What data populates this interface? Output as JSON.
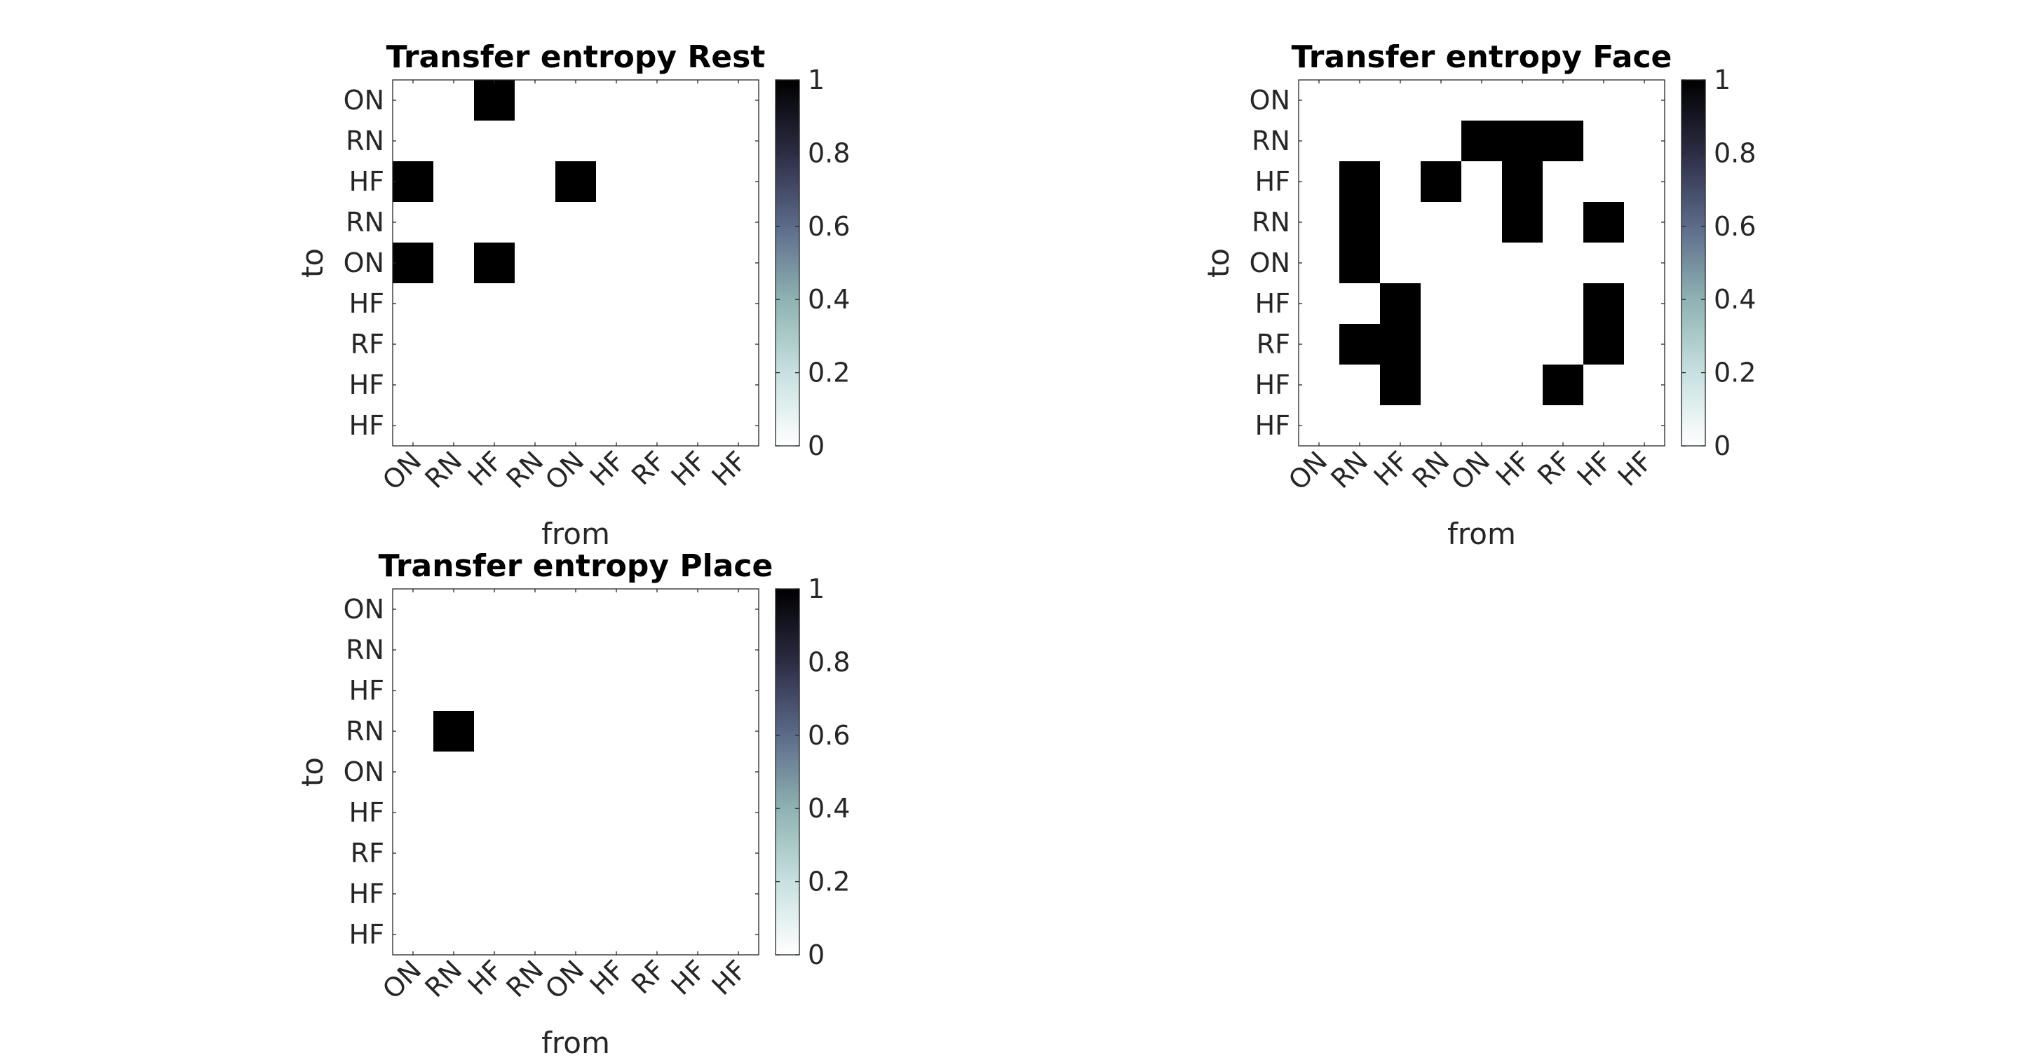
{
  "figure": {
    "background": "#ffffff",
    "colormap": "bone (reversed)",
    "colormap_stops": [
      "#ffffff",
      "#c7e0e0",
      "#8fb2b2",
      "#5c6b8a",
      "#2c2c44",
      "#000000"
    ],
    "grid": false
  },
  "chart_data": [
    {
      "type": "heatmap",
      "title": "Transfer entropy Rest",
      "xlabel": "from",
      "ylabel": "to",
      "x_labels": [
        "ON",
        "RN",
        "HF",
        "RN",
        "ON",
        "HF",
        "RF",
        "HF",
        "HF"
      ],
      "y_labels": [
        "ON",
        "RN",
        "HF",
        "RN",
        "ON",
        "HF",
        "RF",
        "HF",
        "HF"
      ],
      "value_range": [
        0,
        1
      ],
      "matrix": [
        [
          0,
          0,
          1,
          0,
          0,
          0,
          0,
          0,
          0
        ],
        [
          0,
          0,
          0,
          0,
          0,
          0,
          0,
          0,
          0
        ],
        [
          1,
          0,
          0,
          0,
          1,
          0,
          0,
          0,
          0
        ],
        [
          0,
          0,
          0,
          0,
          0,
          0,
          0,
          0,
          0
        ],
        [
          1,
          0,
          1,
          0,
          0,
          0,
          0,
          0,
          0
        ],
        [
          0,
          0,
          0,
          0,
          0,
          0,
          0,
          0,
          0
        ],
        [
          0,
          0,
          0,
          0,
          0,
          0,
          0,
          0,
          0
        ],
        [
          0,
          0,
          0,
          0,
          0,
          0,
          0,
          0,
          0
        ],
        [
          0,
          0,
          0,
          0,
          0,
          0,
          0,
          0,
          0
        ]
      ],
      "colorbar": {
        "ticks": [
          "0",
          "0.2",
          "0.4",
          "0.6",
          "0.8",
          "1"
        ]
      }
    },
    {
      "type": "heatmap",
      "title": "Transfer entropy Face",
      "xlabel": "from",
      "ylabel": "to",
      "x_labels": [
        "ON",
        "RN",
        "HF",
        "RN",
        "ON",
        "HF",
        "RF",
        "HF",
        "HF"
      ],
      "y_labels": [
        "ON",
        "RN",
        "HF",
        "RN",
        "ON",
        "HF",
        "RF",
        "HF",
        "HF"
      ],
      "value_range": [
        0,
        1
      ],
      "matrix": [
        [
          0,
          0,
          0,
          0,
          0,
          0,
          0,
          0,
          0
        ],
        [
          0,
          0,
          0,
          0,
          1,
          1,
          1,
          0,
          0
        ],
        [
          0,
          1,
          0,
          1,
          0,
          1,
          0,
          0,
          0
        ],
        [
          0,
          1,
          0,
          0,
          0,
          1,
          0,
          1,
          0
        ],
        [
          0,
          1,
          0,
          0,
          0,
          0,
          0,
          0,
          0
        ],
        [
          0,
          0,
          1,
          0,
          0,
          0,
          0,
          1,
          0
        ],
        [
          0,
          1,
          1,
          0,
          0,
          0,
          0,
          1,
          0
        ],
        [
          0,
          0,
          1,
          0,
          0,
          0,
          1,
          0,
          0
        ],
        [
          0,
          0,
          0,
          0,
          0,
          0,
          0,
          0,
          0
        ]
      ],
      "colorbar": {
        "ticks": [
          "0",
          "0.2",
          "0.4",
          "0.6",
          "0.8",
          "1"
        ]
      }
    },
    {
      "type": "heatmap",
      "title": "Transfer entropy Place",
      "xlabel": "from",
      "ylabel": "to",
      "x_labels": [
        "ON",
        "RN",
        "HF",
        "RN",
        "ON",
        "HF",
        "RF",
        "HF",
        "HF"
      ],
      "y_labels": [
        "ON",
        "RN",
        "HF",
        "RN",
        "ON",
        "HF",
        "RF",
        "HF",
        "HF"
      ],
      "value_range": [
        0,
        1
      ],
      "matrix": [
        [
          0,
          0,
          0,
          0,
          0,
          0,
          0,
          0,
          0
        ],
        [
          0,
          0,
          0,
          0,
          0,
          0,
          0,
          0,
          0
        ],
        [
          0,
          0,
          0,
          0,
          0,
          0,
          0,
          0,
          0
        ],
        [
          0,
          1,
          0,
          0,
          0,
          0,
          0,
          0,
          0
        ],
        [
          0,
          0,
          0,
          0,
          0,
          0,
          0,
          0,
          0
        ],
        [
          0,
          0,
          0,
          0,
          0,
          0,
          0,
          0,
          0
        ],
        [
          0,
          0,
          0,
          0,
          0,
          0,
          0,
          0,
          0
        ],
        [
          0,
          0,
          0,
          0,
          0,
          0,
          0,
          0,
          0
        ],
        [
          0,
          0,
          0,
          0,
          0,
          0,
          0,
          0,
          0
        ]
      ],
      "colorbar": {
        "ticks": [
          "0",
          "0.2",
          "0.4",
          "0.6",
          "0.8",
          "1"
        ]
      }
    }
  ]
}
